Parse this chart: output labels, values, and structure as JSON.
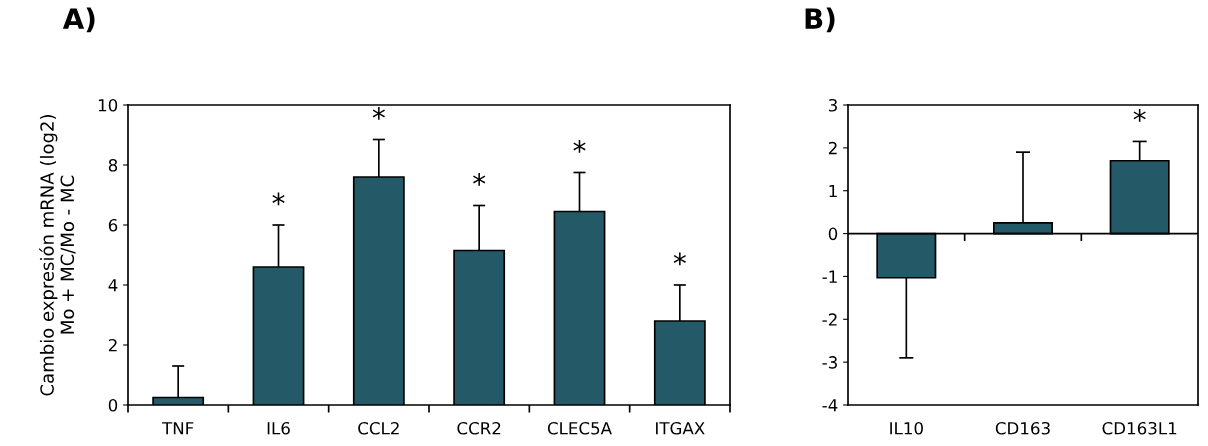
{
  "chart_data": [
    {
      "type": "bar",
      "title": "A)",
      "ylabel": "Cambio expresión mRNA (log2)\nMo + MC/Mo - MC",
      "categories": [
        "TNF",
        "IL6",
        "CCL2",
        "CCR2",
        "CLEC5A",
        "ITGAX"
      ],
      "values": [
        0.25,
        4.6,
        7.6,
        5.15,
        6.45,
        2.8
      ],
      "color": "#245a68",
      "errors": [
        [
          0.25,
          1.3
        ],
        [
          4.6,
          6.0
        ],
        [
          7.6,
          8.85
        ],
        [
          5.15,
          6.65
        ],
        [
          6.45,
          7.75
        ],
        [
          2.8,
          4.0
        ]
      ],
      "ylim": [
        0,
        10
      ],
      "yticks": [
        0,
        2,
        4,
        6,
        8,
        10
      ],
      "grid": false,
      "legend": false,
      "annotations": [
        {
          "text": "*",
          "x": "IL6",
          "y": 6.0
        },
        {
          "text": "*",
          "x": "CCL2",
          "y": 8.85
        },
        {
          "text": "*",
          "x": "CCR2",
          "y": 6.65
        },
        {
          "text": "*",
          "x": "CLEC5A",
          "y": 7.75
        },
        {
          "text": "*",
          "x": "ITGAX",
          "y": 4.0
        }
      ]
    },
    {
      "type": "bar",
      "title": "B)",
      "categories": [
        "IL10",
        "CD163",
        "CD163L1"
      ],
      "values": [
        -1.03,
        0.25,
        1.7
      ],
      "color": "#245a68",
      "errors": [
        [
          -2.9,
          -1.03
        ],
        [
          0.25,
          1.9
        ],
        [
          1.7,
          2.15
        ]
      ],
      "ylim": [
        -4,
        3
      ],
      "yticks": [
        -4,
        -3,
        -2,
        -1,
        0,
        1,
        2,
        3
      ],
      "grid": false,
      "legend": false,
      "ref_lines": [
        {
          "axis": "y",
          "value": 0,
          "color": "#000000"
        }
      ],
      "annotations": [
        {
          "text": "*",
          "x": "CD163L1",
          "y": 2.15
        }
      ]
    }
  ]
}
